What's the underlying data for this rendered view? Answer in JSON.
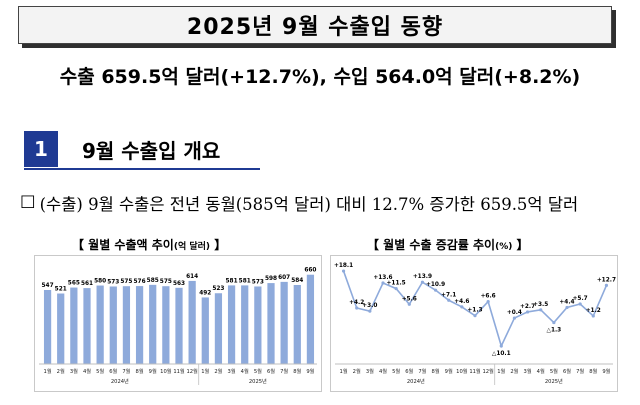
{
  "report": {
    "title": "2025년 9월 수출입 동향",
    "headline": "수출 659.5억 달러(+12.7%), 수입 564.0억 달러(+8.2%)"
  },
  "section": {
    "number": "1",
    "title": "9월 수출입 개요"
  },
  "bullet": {
    "marker": "□",
    "text": "(수출) 9월 수출은 전년 동월(585억 달러) 대비 12.7% 증가한 659.5억 달러"
  },
  "colors": {
    "accent": "#1f3a93",
    "bar": "#8eaadb",
    "line": "#8eaadb"
  },
  "chart_data": [
    {
      "type": "bar",
      "title": "【 월별 수출액 추이",
      "title_unit": "(억 달러)",
      "title_end": " 】",
      "categories": [
        "1월",
        "2월",
        "3월",
        "4월",
        "5월",
        "6월",
        "7월",
        "8월",
        "9월",
        "10월",
        "11월",
        "12월",
        "1월",
        "2월",
        "3월",
        "4월",
        "5월",
        "6월",
        "7월",
        "8월",
        "9월"
      ],
      "groups": [
        {
          "label": "2024년",
          "from": 0,
          "to": 11
        },
        {
          "label": "2025년",
          "from": 12,
          "to": 20
        }
      ],
      "values": [
        547,
        521,
        565,
        561,
        580,
        573,
        575,
        576,
        585,
        575,
        563,
        614,
        492,
        523,
        581,
        581,
        573,
        598,
        607,
        584,
        660
      ],
      "labels": [
        "547",
        "521",
        "565",
        "561",
        "580",
        "573",
        "575",
        "576",
        "585",
        "575",
        "563",
        "614",
        "492",
        "523",
        "581",
        "581",
        "573",
        "598",
        "607",
        "584",
        "660"
      ],
      "ylim": [
        0,
        680
      ]
    },
    {
      "type": "line",
      "title": "【 월별 수출 증감률 추이",
      "title_unit": "(%)",
      "title_end": " 】",
      "categories": [
        "1월",
        "2월",
        "3월",
        "4월",
        "5월",
        "6월",
        "7월",
        "8월",
        "9월",
        "10월",
        "11월",
        "12월",
        "1월",
        "2월",
        "3월",
        "4월",
        "5월",
        "6월",
        "7월",
        "8월",
        "9월"
      ],
      "groups": [
        {
          "label": "2024년",
          "from": 0,
          "to": 11
        },
        {
          "label": "2025년",
          "from": 12,
          "to": 20
        }
      ],
      "values": [
        18.1,
        4.2,
        3.0,
        13.6,
        11.5,
        5.6,
        13.9,
        10.9,
        7.1,
        4.6,
        1.3,
        6.6,
        -10.1,
        0.4,
        2.7,
        3.5,
        -1.3,
        4.4,
        5.7,
        1.2,
        12.7
      ],
      "labels": [
        "+18.1",
        "+4.2",
        "+3.0",
        "+13.6",
        "+11.5",
        "+5.6",
        "+13.9",
        "+10.9",
        "+7.1",
        "+4.6",
        "+1.3",
        "+6.6",
        "△10.1",
        "+0.4",
        "+2.7",
        "+3.5",
        "△1.3",
        "+4.4",
        "+5.7",
        "+1.2",
        "+12.7"
      ],
      "ylim": [
        -12,
        20
      ]
    }
  ]
}
